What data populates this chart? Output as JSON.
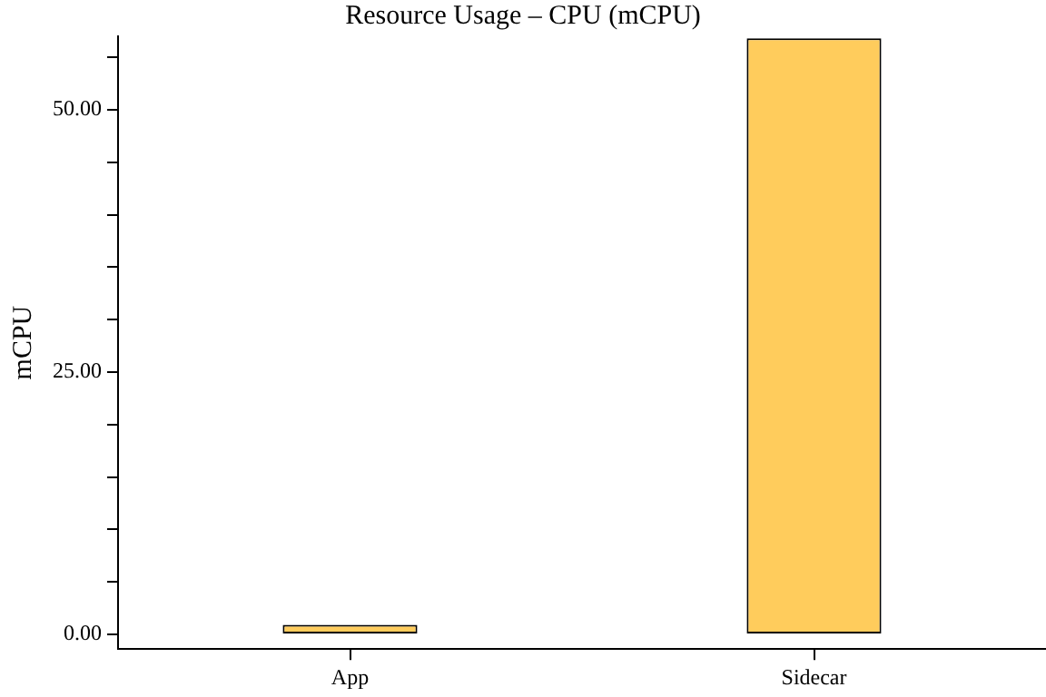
{
  "chart_data": {
    "type": "bar",
    "title": "Resource Usage – CPU (mCPU)",
    "ylabel": "mCPU",
    "categories": [
      "App",
      "Sidecar"
    ],
    "values": [
      0.9,
      56.8
    ],
    "color": "#ffcc5c",
    "ylim": [
      -1.4,
      57
    ],
    "yticks": [
      {
        "value": 0,
        "label": "0.00"
      },
      {
        "value": 5,
        "label": null
      },
      {
        "value": 10,
        "label": null
      },
      {
        "value": 15,
        "label": null
      },
      {
        "value": 20,
        "label": null
      },
      {
        "value": 25,
        "label": "25.00"
      },
      {
        "value": 30,
        "label": null
      },
      {
        "value": 35,
        "label": null
      },
      {
        "value": 40,
        "label": null
      },
      {
        "value": 45,
        "label": null
      },
      {
        "value": 50,
        "label": "50.00"
      },
      {
        "value": 55,
        "label": null
      }
    ],
    "grid": false,
    "legend": false
  }
}
